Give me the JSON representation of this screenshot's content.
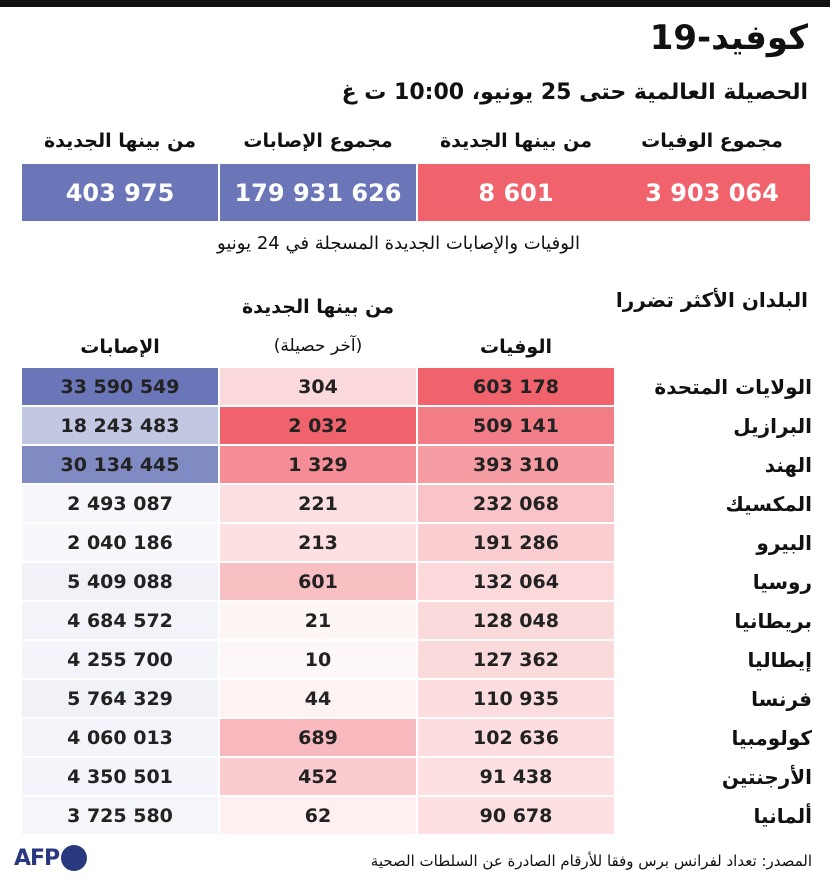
{
  "header": {
    "title": "كوفيد-19",
    "subtitle": "الحصيلة العالمية حتى 25 يونيو، 10:00 ت غ"
  },
  "summary": {
    "deaths_label": "مجموع الوفيات",
    "deaths_value": "3 903 064",
    "new_deaths_label": "من بينها الجديدة",
    "new_deaths_value": "8 601",
    "cases_label": "مجموع الإصابات",
    "cases_value": "179 931 626",
    "new_cases_label": "من بينها الجديدة",
    "new_cases_value": "403 975",
    "note": "الوفيات والإصابات الجديدة المسجلة في 24 يونيو"
  },
  "table": {
    "section_title": "البلدان الأكثر تضررا",
    "col_deaths": "الوفيات",
    "col_new": "من بينها الجديدة",
    "col_new_sub": "(آخر حصيلة)",
    "col_cases": "الإصابات",
    "rows": [
      {
        "country": "الولايات المتحدة",
        "deaths": "603 178",
        "new": "304",
        "cases": "33 590 549"
      },
      {
        "country": "البرازيل",
        "deaths": "509 141",
        "new": "2 032",
        "cases": "18 243 483"
      },
      {
        "country": "الهند",
        "deaths": "393 310",
        "new": "1 329",
        "cases": "30 134 445"
      },
      {
        "country": "المكسيك",
        "deaths": "232 068",
        "new": "221",
        "cases": "2 493 087"
      },
      {
        "country": "البيرو",
        "deaths": "191 286",
        "new": "213",
        "cases": "2 040 186"
      },
      {
        "country": "روسيا",
        "deaths": "132 064",
        "new": "601",
        "cases": "5 409 088"
      },
      {
        "country": "بريطانيا",
        "deaths": "128 048",
        "new": "21",
        "cases": "4 684 572"
      },
      {
        "country": "إيطاليا",
        "deaths": "127 362",
        "new": "10",
        "cases": "4 255 700"
      },
      {
        "country": "فرنسا",
        "deaths": "110 935",
        "new": "44",
        "cases": "5 764 329"
      },
      {
        "country": "كولومبيا",
        "deaths": "102 636",
        "new": "689",
        "cases": "4 060 013"
      },
      {
        "country": "الأرجنتين",
        "deaths": "91 438",
        "new": "452",
        "cases": "4 350 501"
      },
      {
        "country": "ألمانيا",
        "deaths": "90 678",
        "new": "62",
        "cases": "3 725 580"
      }
    ]
  },
  "footer": {
    "logo_text": "AFP",
    "source": "المصدر: تعداد لفرانس برس وفقا للأرقام الصادرة عن السلطات الصحية"
  },
  "colors": {
    "red": "#f0626c",
    "blue": "#6a76b8"
  },
  "chart_data": {
    "type": "table",
    "title": "كوفيد-19",
    "columns": [
      "الوفيات",
      "من بينها الجديدة",
      "الإصابات"
    ],
    "categories": [
      "الولايات المتحدة",
      "البرازيل",
      "الهند",
      "المكسيك",
      "البيرو",
      "روسيا",
      "بريطانيا",
      "إيطاليا",
      "فرنسا",
      "كولومبيا",
      "الأرجنتين",
      "ألمانيا"
    ],
    "series": [
      {
        "name": "الوفيات",
        "values": [
          603178,
          509141,
          393310,
          232068,
          191286,
          132064,
          128048,
          127362,
          110935,
          102636,
          91438,
          90678
        ]
      },
      {
        "name": "من بينها الجديدة",
        "values": [
          304,
          2032,
          1329,
          221,
          213,
          601,
          21,
          10,
          44,
          689,
          452,
          62
        ]
      },
      {
        "name": "الإصابات",
        "values": [
          33590549,
          18243483,
          30134445,
          2493087,
          2040186,
          5409088,
          4684572,
          4255700,
          5764329,
          4060013,
          4350501,
          3725580
        ]
      }
    ]
  }
}
